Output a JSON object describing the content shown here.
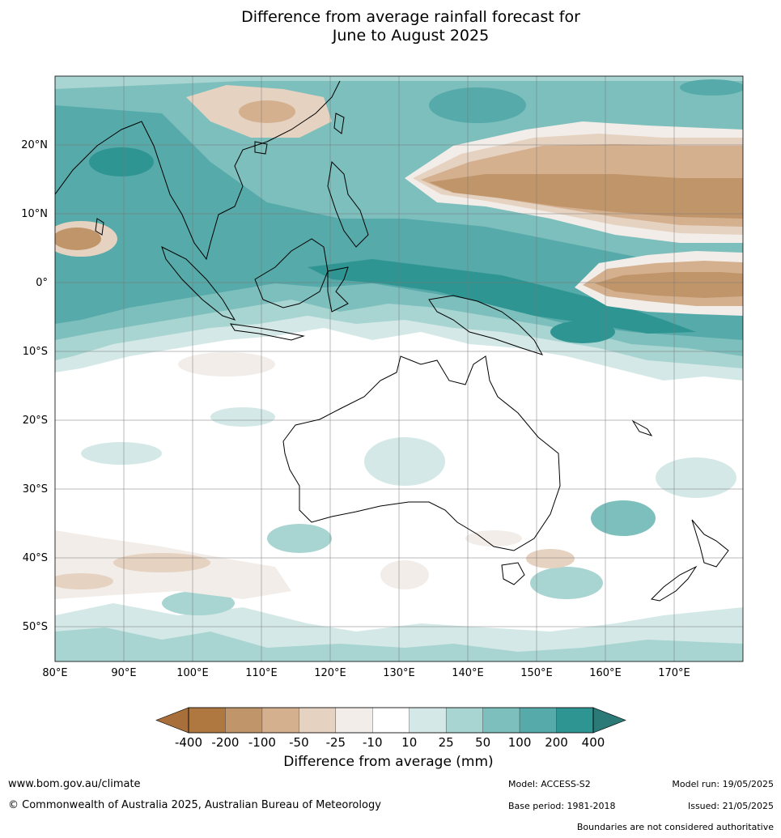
{
  "title": "Difference from average rainfall forecast for\nJune to August 2025",
  "map": {
    "lat_labels": [
      "20°N",
      "10°N",
      "0°",
      "10°S",
      "20°S",
      "30°S",
      "40°S",
      "50°S"
    ],
    "lon_labels": [
      "80°E",
      "90°E",
      "100°E",
      "110°E",
      "120°E",
      "130°E",
      "140°E",
      "150°E",
      "160°E",
      "170°E"
    ],
    "extent": {
      "lon_min": 80,
      "lon_max": 180,
      "lat_min": -55,
      "lat_max": 30
    }
  },
  "legend": {
    "title": "Difference from average (mm)",
    "ticks": [
      "-400",
      "-200",
      "-100",
      "-50",
      "-25",
      "-10",
      "10",
      "25",
      "50",
      "100",
      "200",
      "400"
    ],
    "colors": [
      "#a86f3a",
      "#ae7840",
      "#c0956a",
      "#d4b08f",
      "#e6d2c0",
      "#f2ede8",
      "#ffffff",
      "#d4e9e7",
      "#a8d4d1",
      "#7dbfbd",
      "#56aaa9",
      "#2f9592",
      "#2b7a78"
    ]
  },
  "footer": {
    "url": "www.bom.gov.au/climate",
    "copyright": "© Commonwealth of Australia 2025, Australian Bureau of Meteorology",
    "model": "Model: ACCESS-S2",
    "base_period": "Base period: 1981-2018",
    "model_run": "Model run: 19/05/2025",
    "issued": "Issued: 21/05/2025",
    "boundaries": "Boundaries are not considered authoritative"
  }
}
